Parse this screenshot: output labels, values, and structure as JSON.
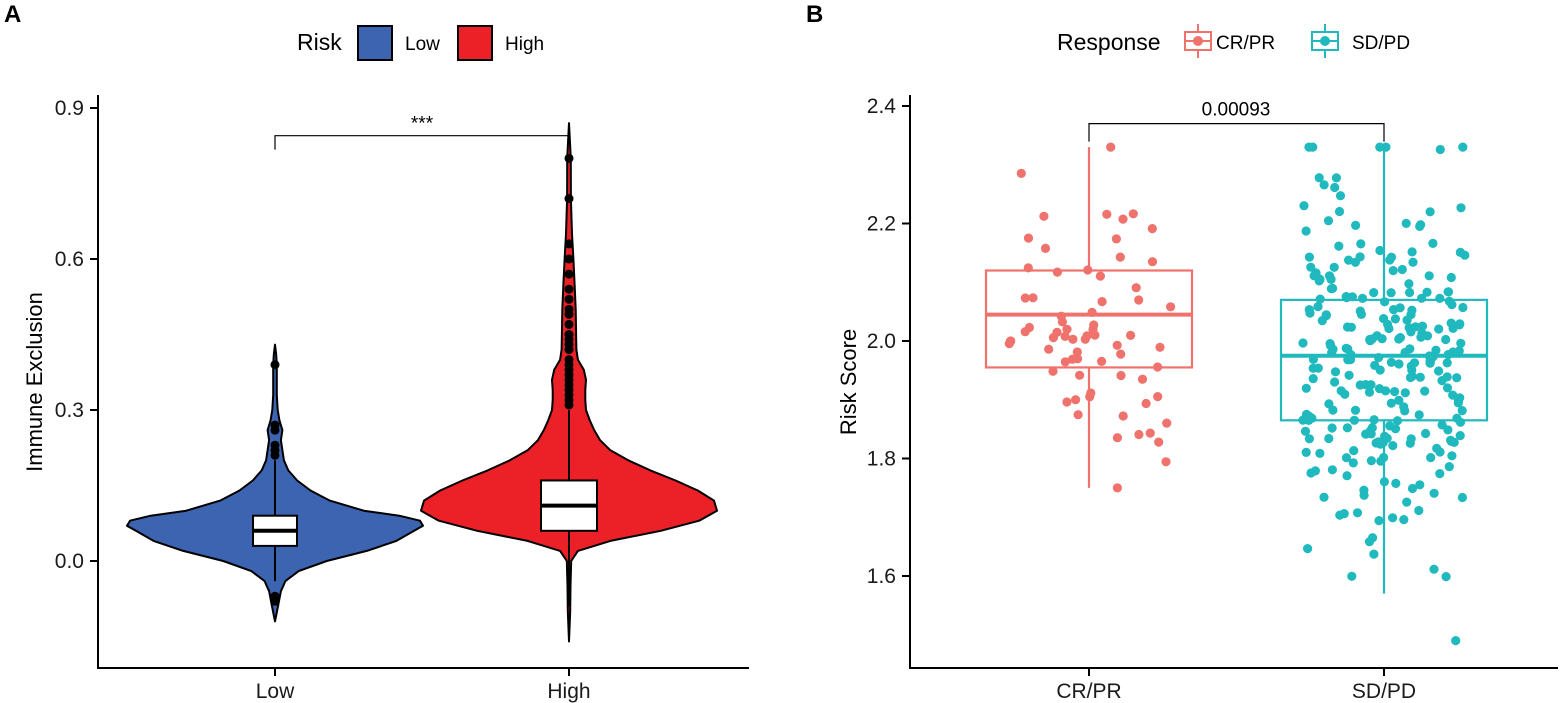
{
  "colors": {
    "low": "#3D64B0",
    "high": "#EC2027",
    "crpr": "#F0726C",
    "sdpd": "#1FB9BE",
    "axis": "#000000"
  },
  "chart_data": [
    {
      "panel": "A",
      "type": "violin",
      "legend": {
        "title": "Risk",
        "entries": [
          "Low",
          "High"
        ],
        "placement": "top"
      },
      "xlabel": "",
      "ylabel": "Immune Exclusion",
      "categories": [
        "Low",
        "High"
      ],
      "yticks": [
        0.0,
        0.3,
        0.6,
        0.9
      ],
      "ytick_labels": [
        "0.0",
        "0.3",
        "0.6",
        "0.9"
      ],
      "ylim": [
        -0.2,
        0.92
      ],
      "violins": [
        {
          "name": "Low",
          "min": -0.12,
          "max": 0.43,
          "profile": [
            [
              -0.12,
              0.0
            ],
            [
              -0.09,
              0.02
            ],
            [
              -0.06,
              0.04
            ],
            [
              -0.04,
              0.07
            ],
            [
              -0.02,
              0.16
            ],
            [
              0.0,
              0.35
            ],
            [
              0.02,
              0.62
            ],
            [
              0.04,
              0.82
            ],
            [
              0.06,
              0.94
            ],
            [
              0.07,
              1.0
            ],
            [
              0.08,
              0.98
            ],
            [
              0.09,
              0.84
            ],
            [
              0.1,
              0.6
            ],
            [
              0.12,
              0.37
            ],
            [
              0.14,
              0.24
            ],
            [
              0.16,
              0.15
            ],
            [
              0.18,
              0.09
            ],
            [
              0.2,
              0.06
            ],
            [
              0.22,
              0.05
            ],
            [
              0.24,
              0.04
            ],
            [
              0.26,
              0.05
            ],
            [
              0.28,
              0.03
            ],
            [
              0.3,
              0.018
            ],
            [
              0.33,
              0.012
            ],
            [
              0.36,
              0.012
            ],
            [
              0.39,
              0.012
            ],
            [
              0.41,
              0.008
            ],
            [
              0.43,
              0.0
            ]
          ],
          "box": {
            "q1": 0.03,
            "median": 0.06,
            "q3": 0.09,
            "whisker_low": -0.04,
            "whisker_high": 0.2
          },
          "outliers": [
            -0.07,
            -0.08,
            0.21,
            0.22,
            0.23,
            0.26,
            0.27,
            0.39
          ]
        },
        {
          "name": "High",
          "min": -0.16,
          "max": 0.87,
          "profile": [
            [
              -0.16,
              0.0
            ],
            [
              -0.1,
              0.008
            ],
            [
              -0.05,
              0.01
            ],
            [
              0.0,
              0.015
            ],
            [
              0.02,
              0.06
            ],
            [
              0.04,
              0.28
            ],
            [
              0.06,
              0.62
            ],
            [
              0.08,
              0.88
            ],
            [
              0.1,
              1.0
            ],
            [
              0.12,
              0.98
            ],
            [
              0.14,
              0.87
            ],
            [
              0.16,
              0.72
            ],
            [
              0.18,
              0.55
            ],
            [
              0.2,
              0.4
            ],
            [
              0.22,
              0.28
            ],
            [
              0.24,
              0.21
            ],
            [
              0.26,
              0.17
            ],
            [
              0.28,
              0.14
            ],
            [
              0.3,
              0.115
            ],
            [
              0.32,
              0.11
            ],
            [
              0.34,
              0.11
            ],
            [
              0.36,
              0.115
            ],
            [
              0.38,
              0.1
            ],
            [
              0.4,
              0.06
            ],
            [
              0.42,
              0.05
            ],
            [
              0.45,
              0.048
            ],
            [
              0.5,
              0.045
            ],
            [
              0.55,
              0.038
            ],
            [
              0.6,
              0.03
            ],
            [
              0.65,
              0.02
            ],
            [
              0.72,
              0.013
            ],
            [
              0.8,
              0.012
            ],
            [
              0.87,
              0.0
            ]
          ],
          "box": {
            "q1": 0.06,
            "median": 0.11,
            "q3": 0.16,
            "whisker_low": -0.09,
            "whisker_high": 0.3
          },
          "outliers": [
            0.31,
            0.32,
            0.33,
            0.34,
            0.35,
            0.36,
            0.37,
            0.38,
            0.39,
            0.4,
            0.42,
            0.43,
            0.44,
            0.45,
            0.47,
            0.49,
            0.5,
            0.52,
            0.54,
            0.57,
            0.6,
            0.63,
            0.72,
            0.8
          ]
        }
      ],
      "comparison": {
        "from": "Low",
        "to": "High",
        "label": "***",
        "y": 0.845
      }
    },
    {
      "panel": "B",
      "type": "box_jitter",
      "legend": {
        "title": "Response",
        "entries": [
          "CR/PR",
          "SD/PD"
        ],
        "placement": "top"
      },
      "xlabel": "",
      "ylabel": "Risk Score",
      "categories": [
        "CR/PR",
        "SD/PD"
      ],
      "yticks": [
        1.6,
        1.8,
        2.0,
        2.2,
        2.4
      ],
      "ytick_labels": [
        "1.6",
        "1.8",
        "2.0",
        "2.2",
        "2.4"
      ],
      "ylim": [
        1.47,
        2.42
      ],
      "boxes": [
        {
          "name": "CR/PR",
          "q1": 1.955,
          "median": 2.045,
          "q3": 2.12,
          "whisker_low": 1.75,
          "whisker_high": 2.33,
          "n_points": 70,
          "points_min": 1.75,
          "points_max": 2.33
        },
        {
          "name": "SD/PD",
          "q1": 1.865,
          "median": 1.975,
          "q3": 2.07,
          "whisker_low": 1.57,
          "whisker_high": 2.33,
          "n_points": 260,
          "points_min": 1.49,
          "points_max": 2.33
        }
      ],
      "comparison": {
        "from": "CR/PR",
        "to": "SD/PD",
        "label": "0.00093",
        "y": 2.37
      }
    }
  ]
}
